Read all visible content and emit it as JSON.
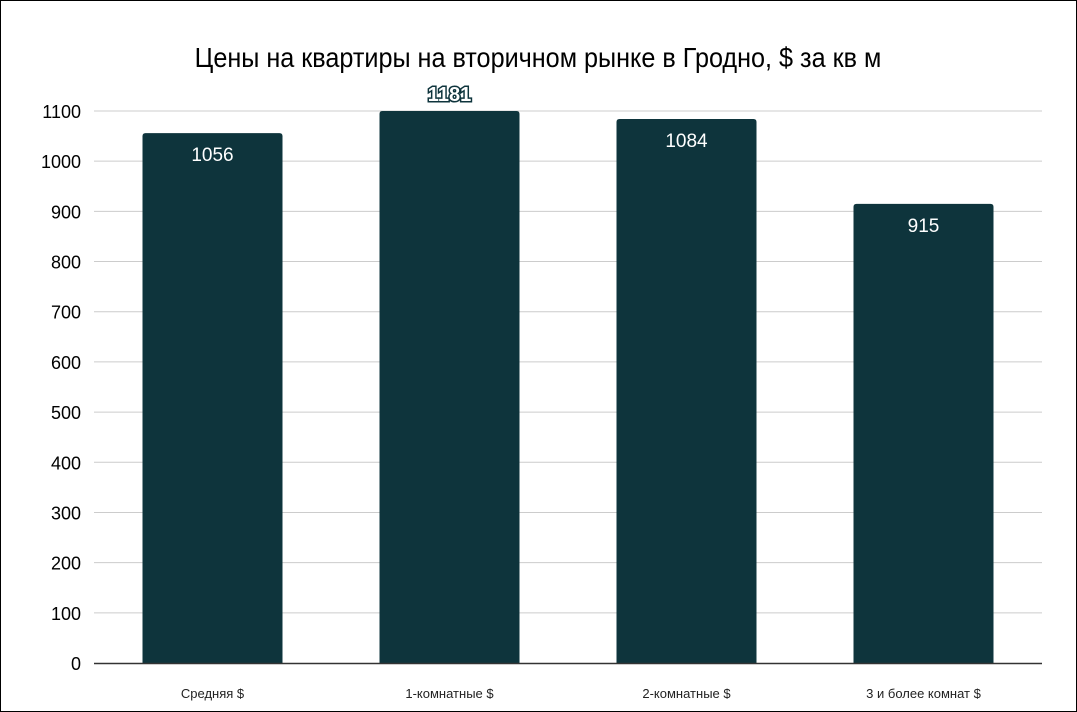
{
  "chart_data": {
    "type": "bar",
    "title": "Цены на квартиры на вторичном рынке в Гродно, $ за кв м",
    "xlabel": "",
    "ylabel": "",
    "categories": [
      "Средняя $",
      "1-комнатные $",
      "2-комнатные $",
      "3 и более комнат $"
    ],
    "values": [
      1056,
      1181,
      1084,
      915
    ],
    "data_labels": [
      "1056",
      "1181",
      "1084",
      "915"
    ],
    "ylim": [
      0,
      1100
    ],
    "yticks": [
      0,
      100,
      200,
      300,
      400,
      500,
      600,
      700,
      800,
      900,
      1000,
      1100
    ],
    "grid": true,
    "legend": "none",
    "bar_color": "#0e343c",
    "label_color": "#ffffff"
  }
}
